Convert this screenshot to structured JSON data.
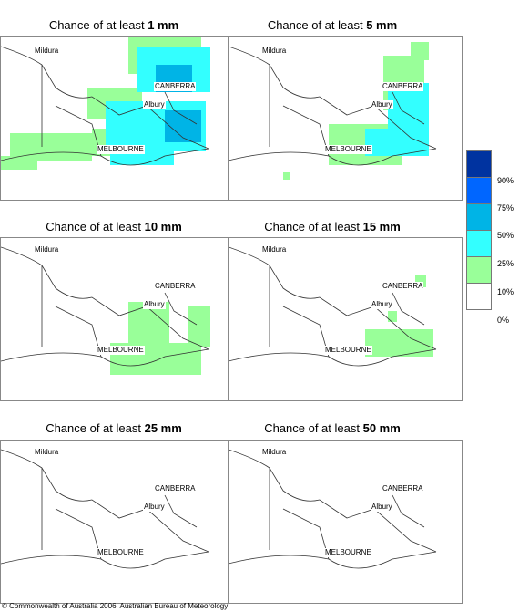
{
  "panels": [
    {
      "prefix": "Chance of at least ",
      "amount": "1 mm"
    },
    {
      "prefix": "Chance of at least ",
      "amount": "5 mm"
    },
    {
      "prefix": "Chance of at least ",
      "amount": "10 mm"
    },
    {
      "prefix": "Chance of at least ",
      "amount": "15 mm"
    },
    {
      "prefix": "Chance of at least ",
      "amount": "25 mm"
    },
    {
      "prefix": "Chance of at least ",
      "amount": "50 mm"
    }
  ],
  "places": {
    "mildura": "Mildura",
    "canberra": "CANBERRA",
    "albury": "Albury",
    "melbourne": "MELBOURNE"
  },
  "legend": {
    "labels": [
      "90%",
      "75%",
      "50%",
      "25%",
      "10%",
      "0%"
    ],
    "colors": [
      "#0033a0",
      "#0066ff",
      "#00b4e6",
      "#33ffff",
      "#99ff99",
      "#ffffff"
    ]
  },
  "copyright": "© Commonwealth of Australia 2006, Australian Bureau of Meteorology"
}
